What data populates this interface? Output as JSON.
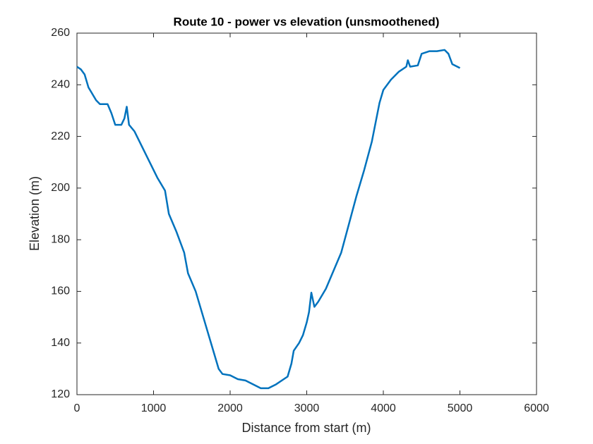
{
  "chart_data": {
    "type": "line",
    "title": "Route 10 - power vs elevation (unsmoothened)",
    "x_label": "Distance from start (m)",
    "y_label": "Elevation (m)",
    "x": [
      0,
      50,
      100,
      150,
      250,
      300,
      400,
      450,
      500,
      580,
      620,
      650,
      680,
      750,
      850,
      950,
      1050,
      1150,
      1200,
      1300,
      1400,
      1450,
      1550,
      1650,
      1750,
      1800,
      1850,
      1900,
      2000,
      2100,
      2200,
      2300,
      2400,
      2500,
      2600,
      2700,
      2750,
      2800,
      2830,
      2900,
      2950,
      3000,
      3030,
      3060,
      3100,
      3150,
      3250,
      3350,
      3450,
      3550,
      3650,
      3750,
      3850,
      3950,
      4000,
      4100,
      4200,
      4300,
      4320,
      4350,
      4450,
      4500,
      4600,
      4700,
      4800,
      4850,
      4900,
      5000
    ],
    "values": [
      247,
      246,
      244,
      239,
      234,
      232.5,
      232.5,
      229,
      224.5,
      224.5,
      227,
      231.5,
      224.5,
      222,
      216,
      210,
      204,
      199,
      190,
      183,
      175,
      167,
      160,
      150,
      140,
      135,
      130,
      128,
      127.5,
      126,
      125.5,
      124,
      122.5,
      122.5,
      124,
      126,
      127,
      132,
      137,
      140,
      143,
      148,
      152,
      159.5,
      154,
      156,
      161,
      168,
      175,
      186,
      197,
      207,
      218,
      233,
      238,
      242,
      245,
      247,
      249.5,
      247,
      247.5,
      252,
      253,
      253,
      253.5,
      252,
      248,
      246.5
    ],
    "color": "#0072bd",
    "xlim": [
      0,
      6000
    ],
    "xticks": [
      0,
      1000,
      2000,
      3000,
      4000,
      5000,
      6000
    ],
    "ylim": [
      120,
      260
    ],
    "yticks": [
      120,
      140,
      160,
      180,
      200,
      220,
      240,
      260
    ],
    "grid": false
  }
}
